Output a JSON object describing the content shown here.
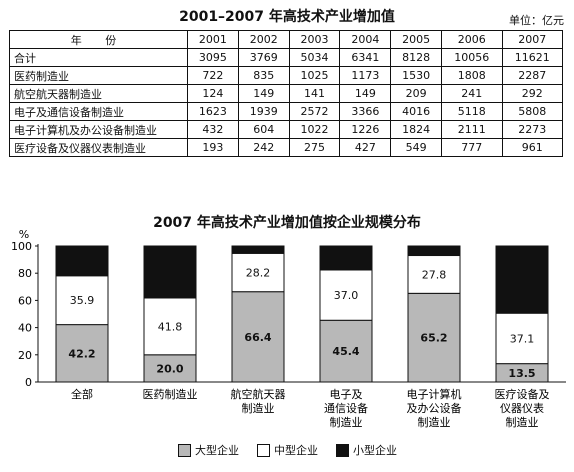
{
  "table": {
    "title": "2001–2007 年高技术产业增加值",
    "unit": "单位：亿元",
    "header_label": "年 份",
    "years": [
      "2001",
      "2002",
      "2003",
      "2004",
      "2005",
      "2006",
      "2007"
    ],
    "rows": [
      {
        "label": "合计",
        "values": [
          "3095",
          "3769",
          "5034",
          "6341",
          "8128",
          "10056",
          "11621"
        ]
      },
      {
        "label": "医药制造业",
        "values": [
          "722",
          "835",
          "1025",
          "1173",
          "1530",
          "1808",
          "2287"
        ]
      },
      {
        "label": "航空航天器制造业",
        "values": [
          "124",
          "149",
          "141",
          "149",
          "209",
          "241",
          "292"
        ]
      },
      {
        "label": "电子及通信设备制造业",
        "values": [
          "1623",
          "1939",
          "2572",
          "3366",
          "4016",
          "5118",
          "5808"
        ]
      },
      {
        "label": "电子计算机及办公设备制造业",
        "values": [
          "432",
          "604",
          "1022",
          "1226",
          "1824",
          "2111",
          "2273"
        ]
      },
      {
        "label": "医疗设备及仪器仪表制造业",
        "values": [
          "193",
          "242",
          "275",
          "427",
          "549",
          "777",
          "961"
        ]
      }
    ]
  },
  "chart_data": {
    "type": "bar",
    "stacked": true,
    "title": "2007 年高技术产业增加值按企业规模分布",
    "ylabel": "%",
    "ylim": [
      0,
      100
    ],
    "yticks": [
      "0",
      "20",
      "40",
      "60",
      "80",
      "100"
    ],
    "categories": [
      [
        "全部"
      ],
      [
        "医药制造业"
      ],
      [
        "航空航天器",
        "制造业"
      ],
      [
        "电子及",
        "通信设备",
        "制造业"
      ],
      [
        "电子计算机",
        "及办公设备",
        "制造业"
      ],
      [
        "医疗设备及",
        "仪器仪表",
        "制造业"
      ]
    ],
    "series": [
      {
        "name": "大型企业",
        "values": [
          42.2,
          20.0,
          66.4,
          45.4,
          65.2,
          13.5
        ],
        "labels": [
          "42.2",
          "20.0",
          "66.4",
          "45.4",
          "65.2",
          "13.5"
        ],
        "color": "#b8b8b8"
      },
      {
        "name": "中型企业",
        "values": [
          35.9,
          41.8,
          28.2,
          37.0,
          27.8,
          37.1
        ],
        "labels": [
          "35.9",
          "41.8",
          "28.2",
          "37.0",
          "27.8",
          "37.1"
        ],
        "color": "#ffffff"
      },
      {
        "name": "小型企业",
        "values": [
          21.9,
          38.2,
          5.4,
          17.6,
          7.0,
          49.4
        ],
        "labels": [
          "",
          "",
          "",
          "",
          "",
          ""
        ],
        "color": "#111111"
      }
    ],
    "legend_position": "bottom"
  }
}
